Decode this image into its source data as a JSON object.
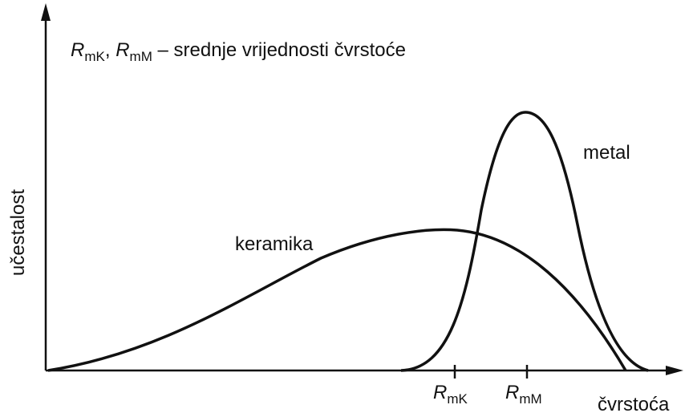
{
  "title": {
    "symbol_1": "R",
    "subscript_1": "mK",
    "separator": ",",
    "symbol_2": "R",
    "subscript_2": "mM",
    "text": "– srednje vrijednosti čvrstoće"
  },
  "y_axis_label": "učestalost",
  "x_axis_label": "čvrstoća",
  "curves": [
    {
      "label": "keramika"
    },
    {
      "label": "metal"
    }
  ],
  "markers": [
    {
      "symbol": "R",
      "subscript": "mK"
    },
    {
      "symbol": "R",
      "subscript": "mM"
    }
  ]
}
